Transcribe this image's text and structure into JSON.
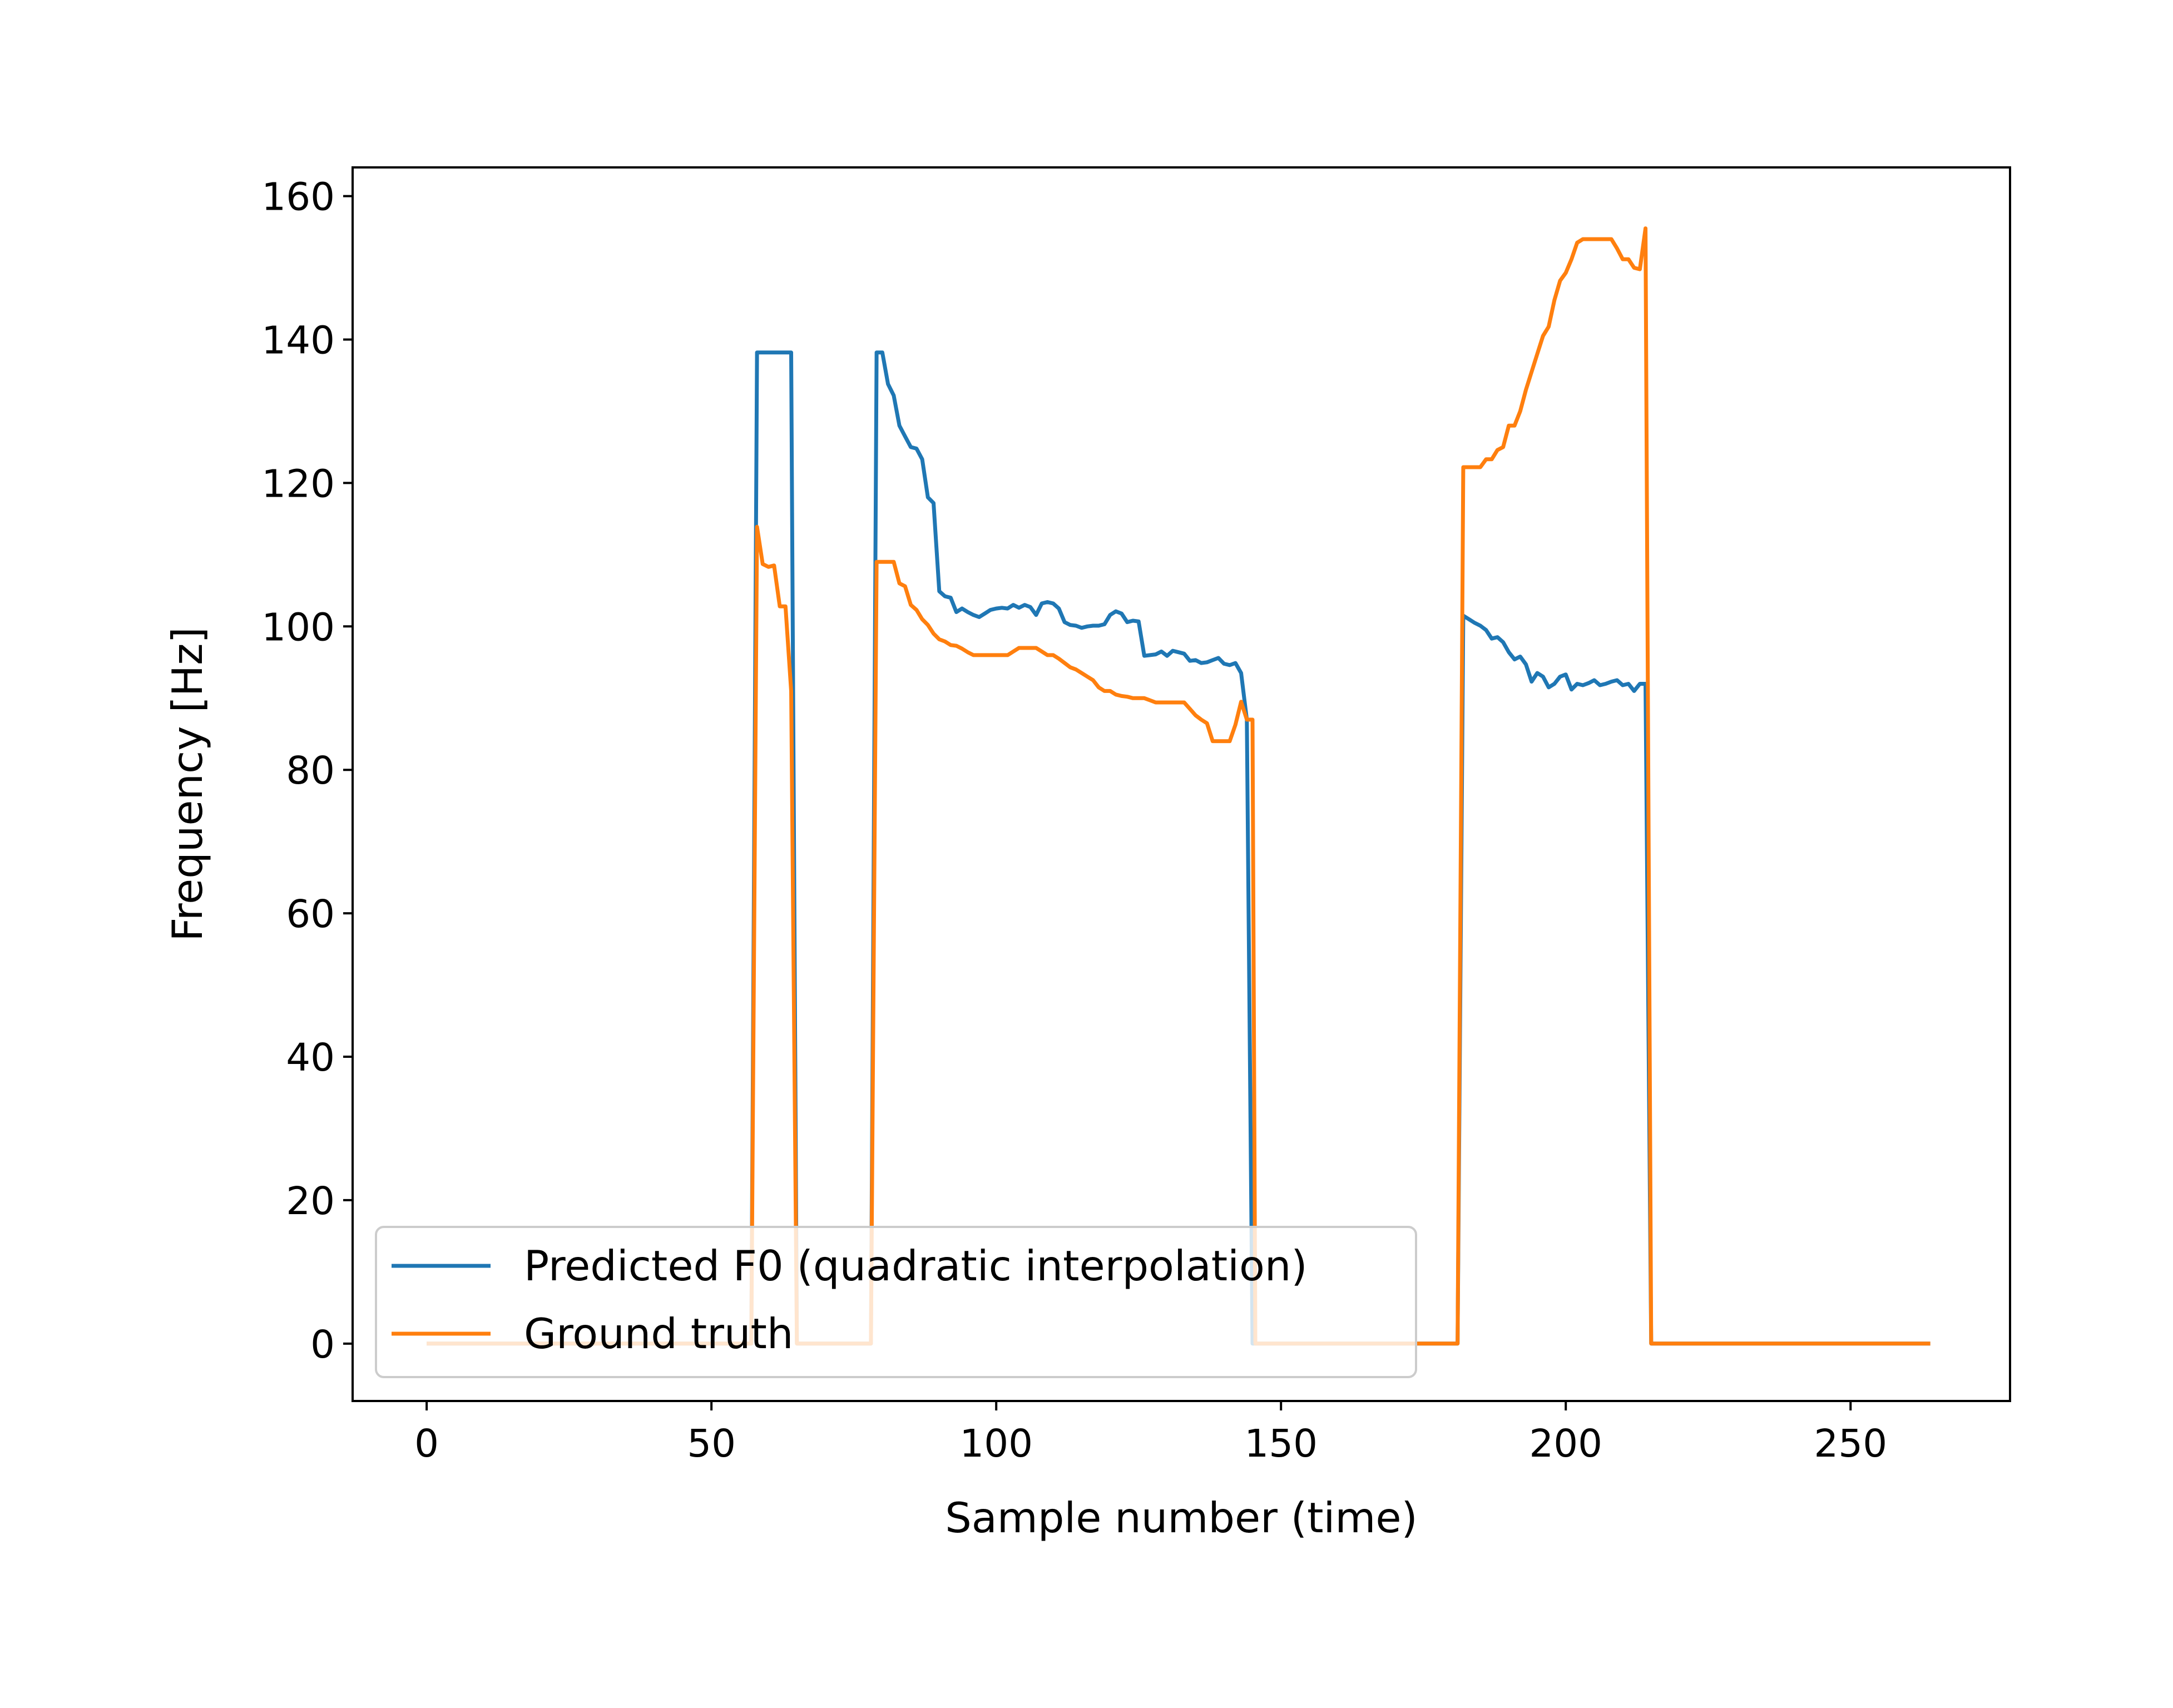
{
  "chart_data": {
    "type": "line",
    "xlabel": "Sample number (time)",
    "ylabel": "Frequency [Hz]",
    "xlim": [
      -13,
      278
    ],
    "ylim": [
      -8,
      164
    ],
    "xticks": [
      0,
      50,
      100,
      150,
      200,
      250
    ],
    "yticks": [
      0,
      20,
      40,
      60,
      80,
      100,
      120,
      140,
      160
    ],
    "grid": false,
    "legend_position": "lower-left",
    "series": [
      {
        "name": "Predicted F0 (quadratic interpolation)",
        "color": "#1f77b4",
        "points": [
          [
            0,
            0
          ],
          [
            57,
            0
          ],
          [
            58,
            138.2
          ],
          [
            64,
            138.2
          ],
          [
            65,
            0
          ],
          [
            78,
            0
          ],
          [
            79,
            138.2
          ],
          [
            80,
            138.2
          ],
          [
            81,
            133.8
          ],
          [
            82,
            132.2
          ],
          [
            83,
            128.0
          ],
          [
            84,
            126.5
          ],
          [
            85,
            125.0
          ],
          [
            86,
            124.8
          ],
          [
            87,
            123.3
          ],
          [
            88,
            118.0
          ],
          [
            89,
            117.2
          ],
          [
            90,
            104.9
          ],
          [
            91,
            104.2
          ],
          [
            92,
            104.0
          ],
          [
            93,
            102.0
          ],
          [
            94,
            102.5
          ],
          [
            95,
            102.0
          ],
          [
            96,
            101.6
          ],
          [
            97,
            101.3
          ],
          [
            98,
            101.8
          ],
          [
            99,
            102.3
          ],
          [
            100,
            102.5
          ],
          [
            101,
            102.6
          ],
          [
            102,
            102.5
          ],
          [
            103,
            103.0
          ],
          [
            104,
            102.6
          ],
          [
            105,
            103.0
          ],
          [
            106,
            102.7
          ],
          [
            107,
            101.6
          ],
          [
            108,
            103.2
          ],
          [
            109,
            103.4
          ],
          [
            110,
            103.2
          ],
          [
            111,
            102.5
          ],
          [
            112,
            100.6
          ],
          [
            113,
            100.2
          ],
          [
            114,
            100.1
          ],
          [
            115,
            99.8
          ],
          [
            116,
            100.0
          ],
          [
            117,
            100.1
          ],
          [
            118,
            100.1
          ],
          [
            119,
            100.3
          ],
          [
            120,
            101.6
          ],
          [
            121,
            102.1
          ],
          [
            122,
            101.8
          ],
          [
            123,
            100.6
          ],
          [
            124,
            100.8
          ],
          [
            125,
            100.7
          ],
          [
            126,
            95.9
          ],
          [
            127,
            96.0
          ],
          [
            128,
            96.1
          ],
          [
            129,
            96.5
          ],
          [
            130,
            95.9
          ],
          [
            131,
            96.6
          ],
          [
            132,
            96.4
          ],
          [
            133,
            96.2
          ],
          [
            134,
            95.2
          ],
          [
            135,
            95.3
          ],
          [
            136,
            94.9
          ],
          [
            137,
            95.0
          ],
          [
            138,
            95.3
          ],
          [
            139,
            95.6
          ],
          [
            140,
            94.8
          ],
          [
            141,
            94.6
          ],
          [
            142,
            94.9
          ],
          [
            143,
            93.5
          ],
          [
            144,
            87.0
          ],
          [
            145,
            0
          ],
          [
            181,
            0
          ],
          [
            182,
            101.5
          ],
          [
            183,
            101.0
          ],
          [
            184,
            100.5
          ],
          [
            185,
            100.1
          ],
          [
            186,
            99.5
          ],
          [
            187,
            98.3
          ],
          [
            188,
            98.5
          ],
          [
            189,
            97.8
          ],
          [
            190,
            96.4
          ],
          [
            191,
            95.4
          ],
          [
            192,
            95.8
          ],
          [
            193,
            94.7
          ],
          [
            194,
            92.3
          ],
          [
            195,
            93.5
          ],
          [
            196,
            93.0
          ],
          [
            197,
            91.5
          ],
          [
            198,
            92.0
          ],
          [
            199,
            93.0
          ],
          [
            200,
            93.3
          ],
          [
            201,
            91.2
          ],
          [
            202,
            92.0
          ],
          [
            203,
            91.8
          ],
          [
            204,
            92.1
          ],
          [
            205,
            92.5
          ],
          [
            206,
            91.8
          ],
          [
            207,
            92.0
          ],
          [
            208,
            92.3
          ],
          [
            209,
            92.5
          ],
          [
            210,
            91.8
          ],
          [
            211,
            92.0
          ],
          [
            212,
            91.0
          ],
          [
            213,
            92.0
          ],
          [
            214,
            92.0
          ],
          [
            215,
            0
          ],
          [
            216,
            0
          ],
          [
            264,
            0
          ]
        ]
      },
      {
        "name": "Ground truth",
        "color": "#ff7f0e",
        "points": [
          [
            0,
            0
          ],
          [
            57,
            0
          ],
          [
            58,
            113.9
          ],
          [
            59,
            108.7
          ],
          [
            60,
            108.3
          ],
          [
            61,
            108.5
          ],
          [
            62,
            102.8
          ],
          [
            63,
            102.8
          ],
          [
            64,
            91.0
          ],
          [
            65,
            0
          ],
          [
            78,
            0
          ],
          [
            79,
            109.0
          ],
          [
            80,
            109.0
          ],
          [
            81,
            109.0
          ],
          [
            82,
            109.0
          ],
          [
            83,
            106.0
          ],
          [
            84,
            105.6
          ],
          [
            85,
            103.0
          ],
          [
            86,
            102.3
          ],
          [
            87,
            101.0
          ],
          [
            88,
            100.2
          ],
          [
            89,
            99.0
          ],
          [
            90,
            98.2
          ],
          [
            91,
            97.9
          ],
          [
            92,
            97.4
          ],
          [
            93,
            97.3
          ],
          [
            94,
            96.9
          ],
          [
            95,
            96.4
          ],
          [
            96,
            96.0
          ],
          [
            97,
            96.0
          ],
          [
            98,
            96.0
          ],
          [
            99,
            96.0
          ],
          [
            100,
            96.0
          ],
          [
            101,
            96.0
          ],
          [
            102,
            96.0
          ],
          [
            103,
            96.5
          ],
          [
            104,
            97.0
          ],
          [
            105,
            97.0
          ],
          [
            106,
            97.0
          ],
          [
            107,
            97.0
          ],
          [
            108,
            96.5
          ],
          [
            109,
            96.0
          ],
          [
            110,
            96.0
          ],
          [
            111,
            95.5
          ],
          [
            112,
            94.9
          ],
          [
            113,
            94.3
          ],
          [
            114,
            94.0
          ],
          [
            115,
            93.5
          ],
          [
            116,
            93.0
          ],
          [
            117,
            92.5
          ],
          [
            118,
            91.5
          ],
          [
            119,
            91.0
          ],
          [
            120,
            91.0
          ],
          [
            121,
            90.5
          ],
          [
            122,
            90.3
          ],
          [
            123,
            90.2
          ],
          [
            124,
            90.0
          ],
          [
            125,
            90.0
          ],
          [
            126,
            90.0
          ],
          [
            127,
            89.7
          ],
          [
            128,
            89.4
          ],
          [
            129,
            89.4
          ],
          [
            130,
            89.4
          ],
          [
            131,
            89.4
          ],
          [
            132,
            89.4
          ],
          [
            133,
            89.4
          ],
          [
            134,
            88.5
          ],
          [
            135,
            87.6
          ],
          [
            136,
            87.0
          ],
          [
            137,
            86.5
          ],
          [
            138,
            84.0
          ],
          [
            139,
            84.0
          ],
          [
            140,
            84.0
          ],
          [
            141,
            84.0
          ],
          [
            142,
            86.3
          ],
          [
            143,
            89.5
          ],
          [
            144,
            87.0
          ],
          [
            145,
            87.0
          ],
          [
            145.5,
            0
          ],
          [
            181,
            0
          ],
          [
            182,
            122.2
          ],
          [
            183,
            122.2
          ],
          [
            184,
            122.2
          ],
          [
            185,
            122.2
          ],
          [
            186,
            123.3
          ],
          [
            187,
            123.3
          ],
          [
            188,
            124.6
          ],
          [
            189,
            125.0
          ],
          [
            190,
            128.0
          ],
          [
            191,
            128.0
          ],
          [
            192,
            130.0
          ],
          [
            193,
            133.0
          ],
          [
            194,
            135.5
          ],
          [
            195,
            138.0
          ],
          [
            196,
            140.5
          ],
          [
            197,
            141.8
          ],
          [
            198,
            145.5
          ],
          [
            199,
            148.2
          ],
          [
            200,
            149.3
          ],
          [
            201,
            151.2
          ],
          [
            202,
            153.5
          ],
          [
            203,
            154.0
          ],
          [
            204,
            154.0
          ],
          [
            205,
            154.0
          ],
          [
            206,
            154.0
          ],
          [
            207,
            154.0
          ],
          [
            208,
            154.0
          ],
          [
            209,
            152.7
          ],
          [
            210,
            151.2
          ],
          [
            211,
            151.2
          ],
          [
            212,
            150.0
          ],
          [
            213,
            149.8
          ],
          [
            214,
            155.5
          ],
          [
            215,
            0
          ],
          [
            216,
            0
          ],
          [
            264,
            0
          ]
        ]
      }
    ]
  }
}
